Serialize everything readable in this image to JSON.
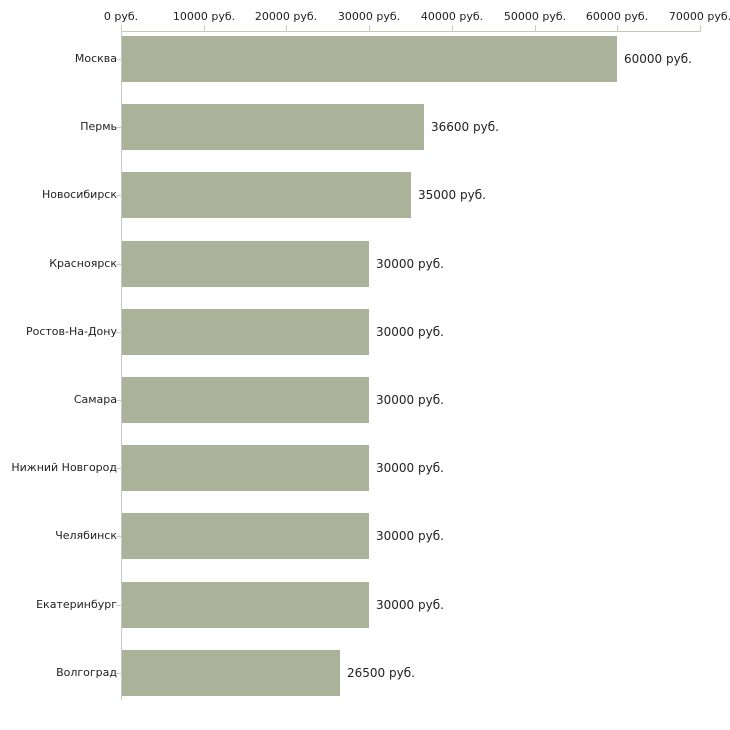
{
  "chart_data": {
    "type": "bar",
    "orientation": "horizontal",
    "title": "",
    "xlabel": "",
    "ylabel": "",
    "grid": false,
    "legend": null,
    "categories": [
      "Москва",
      "Пермь",
      "Новосибирск",
      "Красноярск",
      "Ростов-На-Дону",
      "Самара",
      "Нижний Новгород",
      "Челябинск",
      "Екатеринбург",
      "Волгоград"
    ],
    "values": [
      60000,
      36600,
      35000,
      30000,
      30000,
      30000,
      30000,
      30000,
      30000,
      26500
    ],
    "value_labels": [
      "60000 руб.",
      "36600 руб.",
      "35000 руб.",
      "30000 руб.",
      "30000 руб.",
      "30000 руб.",
      "30000 руб.",
      "30000 руб.",
      "30000 руб.",
      "26500 руб."
    ],
    "x_ticks": [
      0,
      10000,
      20000,
      30000,
      40000,
      50000,
      60000,
      70000
    ],
    "x_tick_labels": [
      "0 руб.",
      "10000 руб.",
      "20000 руб.",
      "30000 руб.",
      "40000 руб.",
      "50000 руб.",
      "60000 руб.",
      "70000 руб."
    ],
    "xlim": [
      0,
      70000
    ],
    "unit": "руб.",
    "colors": {
      "bar": "#abb29a",
      "x_axis_line": "#c9cab6",
      "y_axis_line": "#c9c9c9",
      "tick": "#cdceb4",
      "text": "#1f1f1f",
      "background": "#ffffff"
    }
  }
}
